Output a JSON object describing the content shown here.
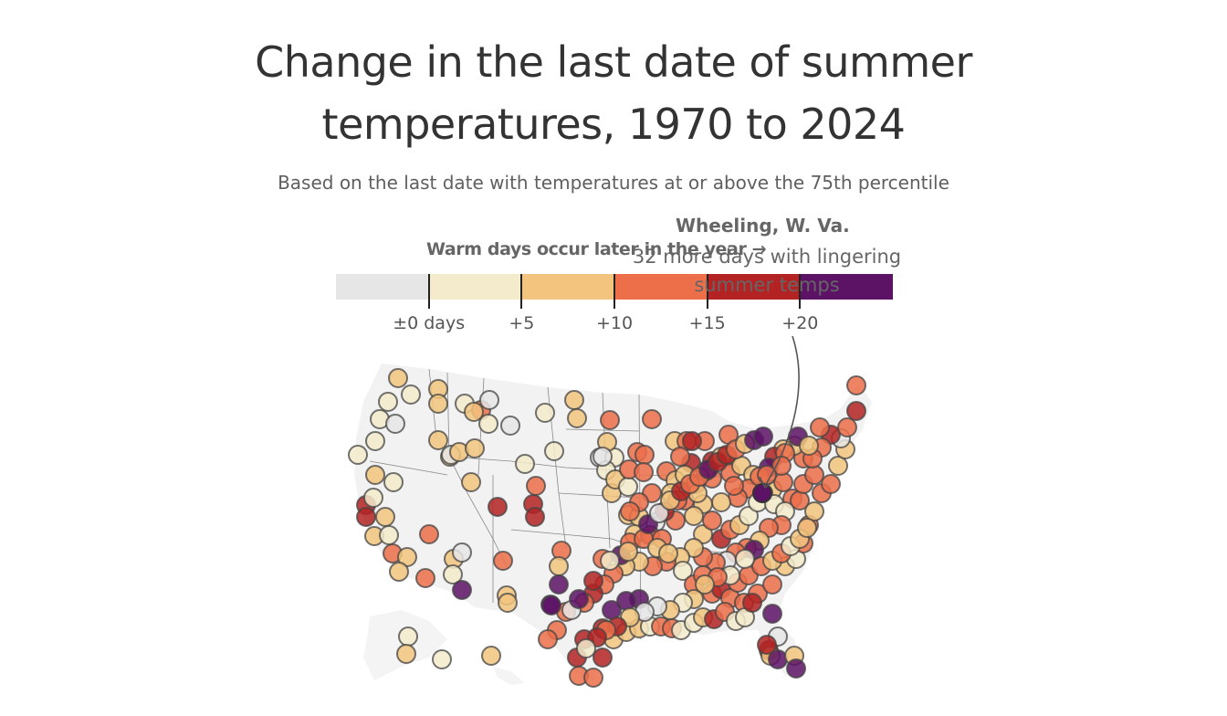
{
  "chart_data": {
    "type": "scatter",
    "title": "Change in the last date of summer temperatures, 1970 to 2024",
    "subtitle": "Based on the last date with temperatures at or above the 75th percentile",
    "legend": {
      "title": "Warm days occur later in the year →",
      "bins": [
        {
          "label": "< 0 days",
          "color": "#e6e6e6"
        },
        {
          "label": "0 to +5",
          "color": "#f3ebcb"
        },
        {
          "label": "+5 to +10",
          "color": "#f2c47e"
        },
        {
          "label": "+10 to +15",
          "color": "#ec6f4a"
        },
        {
          "label": "+15 to +20",
          "color": "#b32323"
        },
        {
          "label": "> +20",
          "color": "#5c1265"
        }
      ],
      "tick_labels": [
        "±0 days",
        "+5",
        "+10",
        "+15",
        "+20"
      ]
    },
    "annotation": {
      "place": "Wheeling, W. Va.",
      "text": "32 more days with lingering summer temps",
      "value_days": 32
    },
    "stations_bin_counts_note": "Each circle is a city; color = bin index (0-5).",
    "stations": [
      2,
      1,
      1,
      2,
      2,
      1,
      0,
      1,
      3,
      0,
      2,
      2,
      1,
      0,
      1,
      1,
      2,
      0,
      1,
      2,
      1,
      1,
      2,
      1,
      2,
      0,
      2,
      2,
      1,
      1,
      2,
      4,
      4,
      1,
      2,
      2,
      3,
      3,
      1,
      2,
      3,
      2,
      0,
      1,
      2,
      3,
      4,
      3,
      4,
      4,
      5,
      2,
      2,
      5,
      3,
      2,
      0,
      2,
      2,
      1,
      0,
      2,
      2,
      2,
      3,
      3,
      3,
      2,
      3,
      3,
      3,
      3,
      4,
      3,
      3,
      4,
      4,
      3,
      3,
      3,
      2,
      2,
      3,
      3,
      3,
      2,
      2,
      3,
      3,
      2,
      2,
      3,
      2,
      3,
      3,
      3,
      3,
      3,
      3,
      2,
      2,
      3,
      4,
      3,
      2,
      1,
      1,
      2,
      3,
      3,
      3,
      3,
      3,
      3,
      2,
      2,
      4,
      5,
      3,
      2,
      1,
      1,
      3,
      3,
      2,
      3,
      3,
      0,
      3,
      3,
      2,
      2,
      3,
      3,
      2,
      2,
      3,
      3,
      4,
      3,
      3,
      3,
      3,
      3,
      5,
      3,
      3,
      2,
      2,
      1,
      3,
      3,
      3,
      4,
      3,
      3,
      3,
      3,
      2,
      1,
      3,
      3,
      2,
      3,
      3,
      2,
      2,
      0,
      4,
      3,
      3,
      3,
      3,
      4,
      3,
      5,
      2,
      3,
      3,
      3,
      3,
      2,
      2,
      3,
      4,
      5,
      5,
      5,
      4,
      4,
      4,
      3,
      3,
      4,
      2,
      2,
      2,
      1,
      3,
      3,
      1,
      1,
      2,
      4,
      3,
      1,
      1,
      4,
      5,
      0,
      4,
      2,
      5,
      2,
      5,
      4,
      3,
      3,
      3,
      2,
      3,
      1,
      2,
      2,
      5,
      1,
      1,
      3,
      2,
      2,
      1,
      2,
      0,
      0,
      2,
      4,
      3,
      4,
      1,
      1,
      2,
      1,
      2,
      3,
      2,
      5,
      5,
      0,
      5,
      4,
      1,
      2,
      5,
      0,
      2,
      4,
      3,
      3,
      5,
      4,
      4,
      3,
      2,
      5,
      5,
      4,
      3,
      3,
      2,
      3,
      2,
      2,
      3,
      1,
      1,
      2,
      2,
      1,
      0,
      1,
      0,
      1,
      2,
      3,
      3,
      3,
      4,
      3,
      3
    ]
  }
}
